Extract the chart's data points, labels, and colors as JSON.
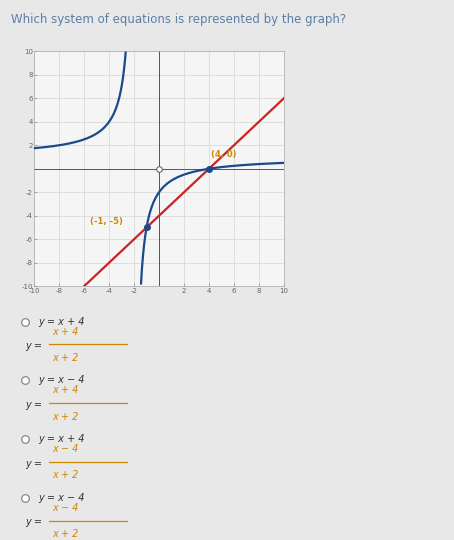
{
  "title": "Which system of equations is represented by the graph?",
  "title_color": "#5b7fa6",
  "bg_color": "#e8e8e8",
  "graph_panel_color": "#ffffff",
  "graph_bg": "#f5f5f5",
  "grid_color": "#cccccc",
  "xlim": [
    -10,
    10
  ],
  "ylim": [
    -10,
    10
  ],
  "xticks": [
    -10,
    -8,
    -6,
    -4,
    -2,
    0,
    2,
    4,
    6,
    8,
    10
  ],
  "yticks": [
    -10,
    -8,
    -6,
    -4,
    -2,
    0,
    2,
    4,
    6,
    8,
    10
  ],
  "line_color": "#cc2222",
  "curve_color": "#1a4a8a",
  "point1": [
    4,
    0
  ],
  "point2": [
    -1,
    -5
  ],
  "point_color": "#1a4a8a",
  "radio_color": "#888888",
  "option_text_color": "#333333",
  "option_line_color": "#cc8800",
  "fraction_color": "#cc8800",
  "separator_color": "#cccccc",
  "options": [
    {
      "line": "y = x + 4",
      "num": "x + 4",
      "den": "x + 2"
    },
    {
      "line": "y = x − 4",
      "num": "x + 4",
      "den": "x + 2"
    },
    {
      "line": "y = x + 4",
      "num": "x − 4",
      "den": "x + 2"
    },
    {
      "line": "y = x − 4",
      "num": "x − 4",
      "den": "x + 2"
    }
  ]
}
